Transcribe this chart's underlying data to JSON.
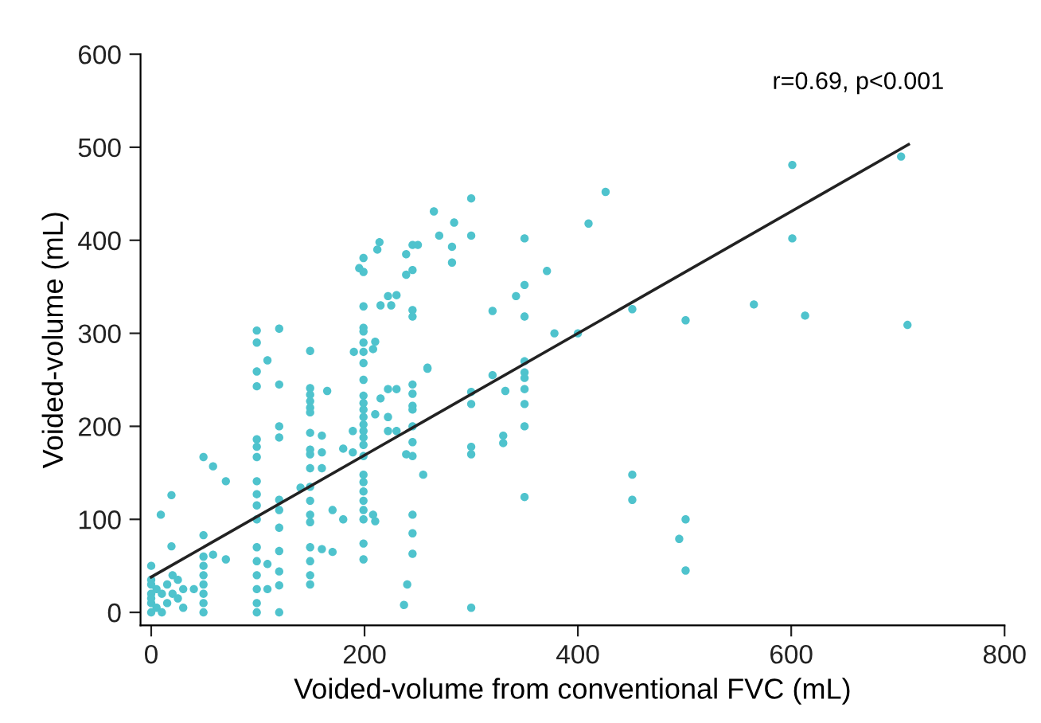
{
  "chart_data": {
    "type": "scatter",
    "xlabel": "Voided-volume from conventional FVC (mL)",
    "ylabel": "Voided-volume (mL)",
    "annotations": [
      "r=0.69, p<0.001"
    ],
    "xlim": [
      -10,
      800
    ],
    "ylim": [
      -14,
      600
    ],
    "xticks": [
      0,
      200,
      400,
      600,
      800
    ],
    "yticks": [
      0,
      100,
      200,
      300,
      400,
      500,
      600
    ],
    "grid": false,
    "legend": false,
    "series": [
      {
        "marker": "circle",
        "color": "#4fc3cd",
        "x": [
          0,
          0,
          0,
          0,
          0,
          0,
          0,
          5,
          5,
          10,
          10,
          15,
          15,
          20,
          20,
          25,
          25,
          30,
          30,
          9,
          19,
          19,
          49,
          49,
          49,
          49,
          49,
          49,
          49,
          49,
          49,
          58,
          70,
          70,
          58,
          40,
          99,
          99,
          99,
          99,
          99,
          99,
          99,
          99,
          99,
          99,
          99,
          99,
          99,
          99,
          99,
          99,
          99,
          109,
          120,
          120,
          120,
          120,
          120,
          120,
          120,
          120,
          120,
          120,
          120,
          109,
          109,
          149,
          149,
          149,
          149,
          149,
          149,
          149,
          149,
          149,
          149,
          149,
          149,
          149,
          149,
          149,
          149,
          149,
          149,
          140,
          160,
          160,
          160,
          160,
          165,
          170,
          180,
          170,
          180,
          199,
          199,
          199,
          199,
          199,
          199,
          199,
          199,
          199,
          199,
          199,
          199,
          199,
          199,
          199,
          199,
          199,
          199,
          199,
          199,
          199,
          199,
          199,
          199,
          199,
          199,
          195,
          190,
          189,
          189,
          208,
          208,
          212,
          215,
          222,
          215,
          222,
          222,
          222,
          239,
          245,
          239,
          245,
          245,
          245,
          259,
          245,
          245,
          245,
          245,
          245,
          245,
          239,
          245,
          255,
          245,
          245,
          245,
          240,
          237,
          214,
          250,
          265,
          284,
          270,
          282,
          282,
          300,
          300,
          350,
          371,
          350,
          342,
          320,
          350,
          378,
          400,
          350,
          350,
          350,
          350,
          350,
          350,
          350,
          320,
          332,
          330,
          330,
          300,
          300,
          300,
          300,
          259,
          230,
          225,
          230,
          230,
          210,
          210,
          210,
          426,
          410,
          601,
          703,
          601,
          451,
          501,
          565,
          613,
          709,
          451,
          451,
          501,
          495,
          501,
          300
        ],
        "values": [
          0,
          10,
          20,
          30,
          35,
          50,
          15,
          5,
          25,
          0,
          20,
          30,
          10,
          20,
          40,
          15,
          35,
          5,
          25,
          105,
          126,
          71,
          83,
          167,
          60,
          50,
          40,
          30,
          20,
          10,
          0,
          157,
          141,
          57,
          62,
          25,
          303,
          290,
          259,
          243,
          186,
          178,
          167,
          141,
          127,
          115,
          100,
          70,
          55,
          40,
          25,
          10,
          0,
          271,
          305,
          245,
          200,
          188,
          121,
          110,
          91,
          66,
          44,
          29,
          0,
          52,
          25,
          281,
          241,
          234,
          227,
          220,
          215,
          193,
          175,
          170,
          155,
          135,
          120,
          105,
          97,
          70,
          55,
          40,
          30,
          134,
          190,
          172,
          155,
          68,
          238,
          110,
          176,
          65,
          100,
          381,
          366,
          329,
          306,
          302,
          290,
          280,
          268,
          250,
          233,
          225,
          218,
          210,
          202,
          195,
          188,
          180,
          168,
          148,
          140,
          130,
          120,
          110,
          100,
          74,
          57,
          370,
          280,
          195,
          172,
          283,
          105,
          390,
          330,
          340,
          230,
          240,
          210,
          195,
          385,
          395,
          363,
          368,
          325,
          318,
          263,
          245,
          235,
          222,
          218,
          200,
          183,
          170,
          168,
          148,
          105,
          85,
          63,
          30,
          8,
          398,
          395,
          431,
          419,
          405,
          393,
          376,
          445,
          405,
          402,
          367,
          352,
          340,
          324,
          318,
          300,
          300,
          270,
          258,
          252,
          240,
          224,
          200,
          124,
          255,
          238,
          190,
          182,
          237,
          224,
          178,
          5,
          262,
          341,
          330,
          240,
          195,
          291,
          213,
          98,
          452,
          418,
          481,
          490,
          402,
          326,
          314,
          331,
          319,
          309,
          148,
          121,
          100,
          79,
          45,
          170
        ]
      },
      {
        "type": "line",
        "marker": "none",
        "color": "#222222",
        "x": [
          0,
          710
        ],
        "values": [
          38,
          503
        ]
      }
    ]
  }
}
